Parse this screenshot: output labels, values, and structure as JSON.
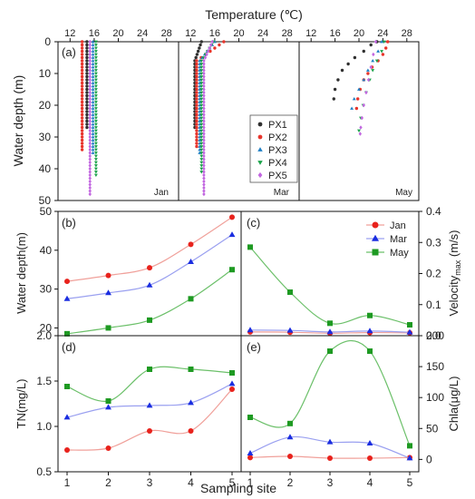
{
  "colors": {
    "PX1": "#303030",
    "PX2": "#e8352c",
    "PX3": "#1f7fc4",
    "PX4": "#1aa34a",
    "PX5": "#c266e0",
    "Jan": "#e8221c",
    "Mar": "#1a2de0",
    "May": "#1e9a22",
    "Jan_line": "#f0a09a",
    "Mar_line": "#9aa0f0",
    "May_line": "#6cc06a"
  },
  "labels": {
    "temperature_title": "Temperature (℃)",
    "depth_axis": "Water depth (m)",
    "jan": "Jan",
    "mar": "Mar",
    "may": "May",
    "b_ylabel": "Water depth(m)",
    "c_ylabel_main": "Velocity",
    "c_ylabel_sub": "max",
    "c_ylabel_unit": " (m/s)",
    "d_ylabel": "TN(mg/L)",
    "e_ylabel": "Chla(μg/L)",
    "xlabel": "Sampling site",
    "panel_a": "(a)",
    "panel_b": "(b)",
    "panel_c": "(c)",
    "panel_d": "(d)",
    "panel_e": "(e)"
  },
  "chart_data": [
    {
      "id": "a",
      "type": "scatter",
      "title": "Temperature (℃)",
      "ylabel": "Water depth (m)",
      "xticks": [
        12,
        16,
        20,
        24,
        28
      ],
      "ylim": [
        0,
        50
      ],
      "ylim_reversed": true,
      "yticks": [
        0,
        10,
        20,
        30,
        40,
        50
      ],
      "legend": [
        "PX1",
        "PX2",
        "PX3",
        "PX4",
        "PX5"
      ],
      "legend_position": "inside bottom-right of Mar sub-panel",
      "months": [
        {
          "name": "Jan",
          "xlim": [
            10,
            30
          ],
          "series": [
            {
              "name": "PX1",
              "temperature": 14.8,
              "depth_from": 0,
              "depth_to": 27
            },
            {
              "name": "PX2",
              "temperature": 14.0,
              "depth_from": 0,
              "depth_to": 34
            },
            {
              "name": "PX3",
              "temperature": 15.8,
              "depth_from": 0,
              "depth_to": 35
            },
            {
              "name": "PX4",
              "temperature": 16.3,
              "depth_from": 0,
              "depth_to": 42
            },
            {
              "name": "PX5",
              "temperature": 15.3,
              "depth_from": 0,
              "depth_to": 48
            }
          ]
        },
        {
          "name": "Mar",
          "xlim": [
            10,
            30
          ],
          "series": [
            {
              "name": "PX1",
              "temperature": 12.7,
              "temperature_top": 13.8,
              "depth_from": 0,
              "depth_to": 27
            },
            {
              "name": "PX2",
              "temperature": 13.0,
              "temperature_top": 17.5,
              "depth_from": 0,
              "depth_to": 33
            },
            {
              "name": "PX3",
              "temperature": 13.5,
              "temperature_top": 16.0,
              "depth_from": 0,
              "depth_to": 35
            },
            {
              "name": "PX4",
              "temperature": 13.8,
              "temperature_top": 15.8,
              "depth_from": 0,
              "depth_to": 41
            },
            {
              "name": "PX5",
              "temperature": 14.2,
              "temperature_top": 15.6,
              "depth_from": 0,
              "depth_to": 48
            }
          ]
        },
        {
          "name": "May",
          "xlim": [
            10,
            30
          ],
          "series": [
            {
              "name": "PX1",
              "points": [
                [
                  23.0,
                  0
                ],
                [
                  22.0,
                  1
                ],
                [
                  20.8,
                  3
                ],
                [
                  19.3,
                  5
                ],
                [
                  18.2,
                  7
                ],
                [
                  17.2,
                  9
                ],
                [
                  16.5,
                  12
                ],
                [
                  16.0,
                  15
                ],
                [
                  15.8,
                  18
                ]
              ]
            },
            {
              "name": "PX2",
              "points": [
                [
                  24.8,
                  0
                ],
                [
                  24.5,
                  2
                ],
                [
                  24.0,
                  4
                ],
                [
                  23.2,
                  6
                ],
                [
                  22.2,
                  8
                ],
                [
                  21.5,
                  10
                ],
                [
                  20.8,
                  12
                ],
                [
                  20.2,
                  15
                ],
                [
                  19.8,
                  18
                ],
                [
                  19.6,
                  21
                ]
              ]
            },
            {
              "name": "PX3",
              "points": [
                [
                  23.8,
                  0
                ],
                [
                  23.2,
                  3
                ],
                [
                  22.3,
                  6
                ],
                [
                  21.5,
                  9
                ],
                [
                  20.8,
                  12
                ],
                [
                  20.0,
                  15
                ],
                [
                  19.2,
                  18
                ],
                [
                  18.8,
                  21
                ]
              ]
            },
            {
              "name": "PX4",
              "points": [
                [
                  24.2,
                  0
                ],
                [
                  23.8,
                  3
                ],
                [
                  23.0,
                  6
                ],
                [
                  22.3,
                  9
                ],
                [
                  21.8,
                  12
                ],
                [
                  21.2,
                  16
                ],
                [
                  20.7,
                  20
                ],
                [
                  20.3,
                  24
                ],
                [
                  20.0,
                  28
                ]
              ]
            },
            {
              "name": "PX5",
              "points": [
                [
                  22.8,
                  0
                ],
                [
                  22.4,
                  4
                ],
                [
                  22.0,
                  8
                ],
                [
                  21.6,
                  12
                ],
                [
                  21.2,
                  16
                ],
                [
                  20.8,
                  20
                ],
                [
                  20.5,
                  24
                ],
                [
                  20.3,
                  27
                ],
                [
                  20.2,
                  29
                ]
              ]
            }
          ]
        }
      ]
    },
    {
      "id": "b",
      "type": "line",
      "ylabel": "Water depth(m)",
      "ylim": [
        18,
        50
      ],
      "yticks": [
        20,
        30,
        40,
        50
      ],
      "x": [
        1,
        2,
        3,
        4,
        5
      ],
      "series": [
        {
          "name": "Jan",
          "values": [
            32,
            33.5,
            35.5,
            41.5,
            48.5
          ]
        },
        {
          "name": "Mar",
          "values": [
            27.5,
            29,
            31,
            37,
            44
          ]
        },
        {
          "name": "May",
          "values": [
            18.5,
            20,
            22,
            27.5,
            35
          ]
        }
      ]
    },
    {
      "id": "c",
      "type": "line",
      "ylabel": "Velocity max (m/s)",
      "ylim": [
        0,
        0.4
      ],
      "yticks": [
        0.0,
        0.1,
        0.2,
        0.3,
        0.4
      ],
      "legend": [
        "Jan",
        "Mar",
        "May"
      ],
      "legend_position": "top-right",
      "x": [
        1,
        2,
        3,
        4,
        5
      ],
      "series": [
        {
          "name": "Jan",
          "values": [
            0.012,
            0.011,
            0.008,
            0.01,
            0.009
          ]
        },
        {
          "name": "Mar",
          "values": [
            0.018,
            0.017,
            0.012,
            0.015,
            0.011
          ]
        },
        {
          "name": "May",
          "values": [
            0.285,
            0.14,
            0.04,
            0.065,
            0.035
          ]
        }
      ]
    },
    {
      "id": "d",
      "type": "line",
      "ylabel": "TN(mg/L)",
      "ylim": [
        0.5,
        2.0
      ],
      "yticks": [
        0.5,
        1.0,
        1.5,
        2.0
      ],
      "xlabel": "Sampling site",
      "x": [
        1,
        2,
        3,
        4,
        5
      ],
      "series": [
        {
          "name": "Jan",
          "values": [
            0.74,
            0.76,
            0.95,
            0.95,
            1.41
          ]
        },
        {
          "name": "Mar",
          "values": [
            1.1,
            1.21,
            1.23,
            1.26,
            1.47
          ]
        },
        {
          "name": "May",
          "values": [
            1.44,
            1.28,
            1.63,
            1.63,
            1.59
          ]
        }
      ]
    },
    {
      "id": "e",
      "type": "line",
      "ylabel": "Chla(μg/L)",
      "ylim": [
        -20,
        200
      ],
      "yticks": [
        0,
        50,
        100,
        150,
        200
      ],
      "x": [
        1,
        2,
        3,
        4,
        5
      ],
      "series": [
        {
          "name": "Jan",
          "values": [
            3,
            5,
            2,
            2,
            3
          ]
        },
        {
          "name": "Mar",
          "values": [
            10,
            36,
            28,
            26,
            2
          ]
        },
        {
          "name": "May",
          "values": [
            68,
            58,
            175,
            175,
            22
          ]
        }
      ]
    }
  ]
}
